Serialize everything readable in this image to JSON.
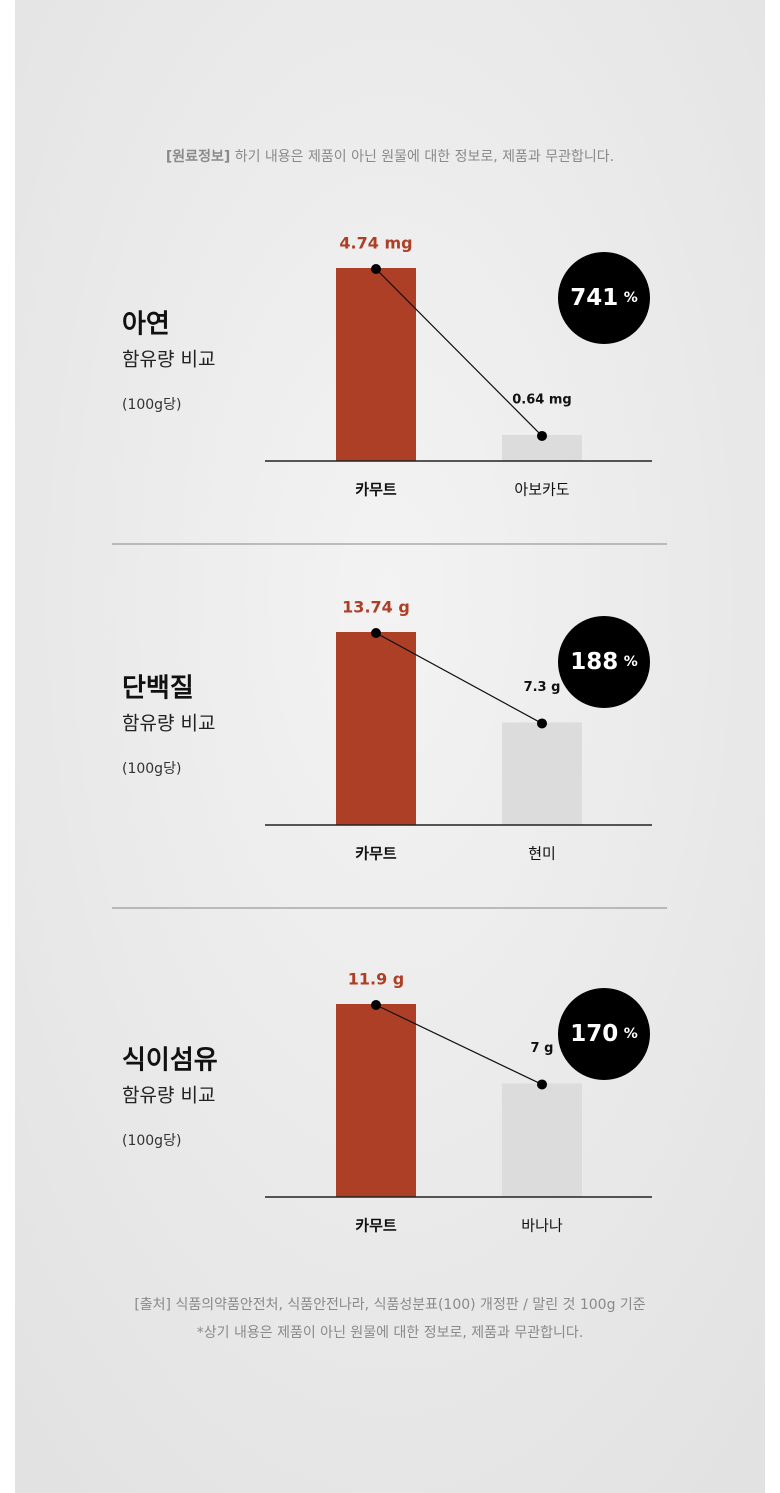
{
  "header": {
    "label": "[원료정보]",
    "text": "하기 내용은 제품이 아닌 원물에 대한 정보로, 제품과 무관합니다."
  },
  "chart_data": [
    {
      "type": "bar",
      "title": "아연",
      "subtitle": "함유량 비교",
      "note": "(100g당)",
      "categories": [
        "카무트",
        "아보카도"
      ],
      "values": [
        4.74,
        0.64
      ],
      "value_labels": [
        "4.74 mg",
        "0.64 mg"
      ],
      "colors": [
        "#ae3f27",
        "#dcdcdc"
      ],
      "ratio": 741,
      "ratio_unit": "%"
    },
    {
      "type": "bar",
      "title": "단백질",
      "subtitle": "함유량 비교",
      "note": "(100g당)",
      "categories": [
        "카무트",
        "현미"
      ],
      "values": [
        13.74,
        7.3
      ],
      "value_labels": [
        "13.74 g",
        "7.3 g"
      ],
      "colors": [
        "#ae3f27",
        "#dcdcdc"
      ],
      "ratio": 188,
      "ratio_unit": "%"
    },
    {
      "type": "bar",
      "title": "식이섬유",
      "subtitle": "함유량 비교",
      "note": "(100g당)",
      "categories": [
        "카무트",
        "바나나"
      ],
      "values": [
        11.9,
        7
      ],
      "value_labels": [
        "11.9 g",
        "7 g"
      ],
      "colors": [
        "#ae3f27",
        "#dcdcdc"
      ],
      "ratio": 170,
      "ratio_unit": "%"
    }
  ],
  "footer": {
    "source": "[출처] 식품의약품안전처, 식품안전나라, 식품성분표(100) 개정판 / 말린 것 100g 기준",
    "disclaimer": "*상기  내용은 제품이 아닌 원물에 대한 정보로, 제품과 무관합니다."
  }
}
